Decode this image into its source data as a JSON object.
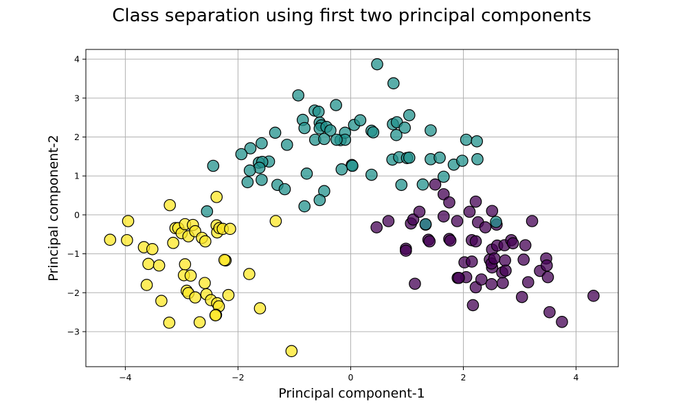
{
  "chart_data": {
    "type": "scatter",
    "title": "Class separation using first two principal components",
    "xlabel": "Principal component-1",
    "ylabel": "Principal component-2",
    "xlim": [
      -4.7,
      4.75
    ],
    "ylim": [
      -3.9,
      4.25
    ],
    "xticks": [
      -4,
      -2,
      0,
      2,
      4
    ],
    "yticks": [
      -3,
      -2,
      -1,
      0,
      1,
      2,
      3,
      4
    ],
    "xtick_labels": [
      "−4",
      "−2",
      "0",
      "2",
      "4"
    ],
    "ytick_labels": [
      "−3",
      "−2",
      "−1",
      "0",
      "1",
      "2",
      "3",
      "4"
    ],
    "grid": true,
    "series": [
      {
        "color": "#440154",
        "points": [
          [
            0.46,
            -0.32
          ],
          [
            0.67,
            -0.16
          ],
          [
            1.07,
            -0.22
          ],
          [
            1.11,
            -0.12
          ],
          [
            1.22,
            0.08
          ],
          [
            1.33,
            -0.25
          ],
          [
            1.5,
            0.78
          ],
          [
            1.65,
            0.53
          ],
          [
            1.75,
            0.32
          ],
          [
            1.65,
            -0.04
          ],
          [
            1.89,
            -0.16
          ],
          [
            1.75,
            -0.62
          ],
          [
            1.77,
            -0.66
          ],
          [
            0.98,
            -0.87
          ],
          [
            0.98,
            -0.92
          ],
          [
            1.38,
            -0.64
          ],
          [
            1.4,
            -0.68
          ],
          [
            1.14,
            -1.77
          ],
          [
            2.02,
            -1.22
          ],
          [
            2.15,
            -1.2
          ],
          [
            2.05,
            -1.6
          ],
          [
            1.9,
            -1.62
          ],
          [
            1.92,
            -1.62
          ],
          [
            2.22,
            -1.86
          ],
          [
            2.32,
            -1.66
          ],
          [
            2.17,
            -2.32
          ],
          [
            2.15,
            -0.65
          ],
          [
            2.22,
            -0.68
          ],
          [
            2.26,
            -0.19
          ],
          [
            2.11,
            0.08
          ],
          [
            2.22,
            0.34
          ],
          [
            2.39,
            -0.32
          ],
          [
            2.51,
            0.1
          ],
          [
            2.59,
            -0.25
          ],
          [
            2.51,
            -0.89
          ],
          [
            2.6,
            -0.79
          ],
          [
            2.47,
            -1.15
          ],
          [
            2.51,
            -1.35
          ],
          [
            2.5,
            -1.25
          ],
          [
            2.55,
            -1.12
          ],
          [
            2.69,
            -1.48
          ],
          [
            2.75,
            -1.43
          ],
          [
            2.74,
            -1.17
          ],
          [
            2.73,
            -0.78
          ],
          [
            2.85,
            -0.65
          ],
          [
            2.88,
            -0.73
          ],
          [
            2.5,
            -1.78
          ],
          [
            2.7,
            -1.75
          ],
          [
            3.07,
            -1.15
          ],
          [
            3.1,
            -0.78
          ],
          [
            3.22,
            -0.16
          ],
          [
            3.04,
            -2.11
          ],
          [
            3.15,
            -1.73
          ],
          [
            3.36,
            -1.44
          ],
          [
            3.47,
            -1.12
          ],
          [
            3.48,
            -1.3
          ],
          [
            3.5,
            -1.6
          ],
          [
            3.53,
            -2.5
          ],
          [
            3.75,
            -2.75
          ],
          [
            4.31,
            -2.08
          ]
        ]
      },
      {
        "color": "#21918c",
        "points": [
          [
            0.47,
            3.87
          ],
          [
            0.76,
            3.38
          ],
          [
            -0.93,
            3.07
          ],
          [
            -0.26,
            2.82
          ],
          [
            -0.64,
            2.68
          ],
          [
            -0.57,
            2.65
          ],
          [
            -0.85,
            2.44
          ],
          [
            -0.55,
            2.37
          ],
          [
            -0.52,
            2.3
          ],
          [
            -0.55,
            2.22
          ],
          [
            -0.43,
            2.26
          ],
          [
            -0.36,
            2.17
          ],
          [
            -0.18,
            1.92
          ],
          [
            -0.1,
            2.11
          ],
          [
            -0.1,
            1.93
          ],
          [
            0.06,
            2.31
          ],
          [
            0.17,
            2.43
          ],
          [
            0.37,
            2.16
          ],
          [
            0.4,
            2.12
          ],
          [
            0.75,
            2.33
          ],
          [
            0.82,
            2.38
          ],
          [
            0.96,
            2.24
          ],
          [
            1.04,
            2.56
          ],
          [
            0.81,
            2.05
          ],
          [
            1.42,
            2.17
          ],
          [
            -0.82,
            2.23
          ],
          [
            -0.63,
            1.93
          ],
          [
            -0.47,
            1.95
          ],
          [
            -1.34,
            2.11
          ],
          [
            -1.58,
            1.84
          ],
          [
            -1.78,
            1.71
          ],
          [
            -1.94,
            1.56
          ],
          [
            -1.13,
            1.8
          ],
          [
            -1.45,
            1.37
          ],
          [
            -1.63,
            1.34
          ],
          [
            -1.57,
            1.36
          ],
          [
            -1.62,
            1.21
          ],
          [
            -1.79,
            1.14
          ],
          [
            -2.44,
            1.26
          ],
          [
            -0.25,
            1.93
          ],
          [
            -0.78,
            1.06
          ],
          [
            0.02,
            1.28
          ],
          [
            0.03,
            1.26
          ],
          [
            -0.16,
            1.17
          ],
          [
            -1.83,
            0.84
          ],
          [
            -1.58,
            0.9
          ],
          [
            -1.3,
            0.77
          ],
          [
            -1.17,
            0.66
          ],
          [
            -0.47,
            0.61
          ],
          [
            -0.55,
            0.38
          ],
          [
            -0.82,
            0.22
          ],
          [
            -2.55,
            0.09
          ],
          [
            0.37,
            1.03
          ],
          [
            0.74,
            1.42
          ],
          [
            0.86,
            1.48
          ],
          [
            1.0,
            1.46
          ],
          [
            1.04,
            1.47
          ],
          [
            1.42,
            1.43
          ],
          [
            1.58,
            1.47
          ],
          [
            1.65,
            0.98
          ],
          [
            1.83,
            1.29
          ],
          [
            1.98,
            1.39
          ],
          [
            2.05,
            1.93
          ],
          [
            2.24,
            1.89
          ],
          [
            2.25,
            1.43
          ],
          [
            1.28,
            0.78
          ],
          [
            0.9,
            0.77
          ],
          [
            1.33,
            -0.24
          ],
          [
            2.58,
            -0.18
          ]
        ]
      },
      {
        "color": "#fde725",
        "points": [
          [
            -3.21,
            0.25
          ],
          [
            -2.38,
            0.46
          ],
          [
            -4.27,
            -0.64
          ],
          [
            -3.95,
            -0.16
          ],
          [
            -3.97,
            -0.65
          ],
          [
            -3.67,
            -0.83
          ],
          [
            -3.52,
            -0.88
          ],
          [
            -3.11,
            -0.34
          ],
          [
            -3.06,
            -0.34
          ],
          [
            -3.0,
            -0.47
          ],
          [
            -2.94,
            -0.24
          ],
          [
            -2.88,
            -0.55
          ],
          [
            -2.8,
            -0.26
          ],
          [
            -2.76,
            -0.42
          ],
          [
            -2.64,
            -0.59
          ],
          [
            -2.58,
            -0.68
          ],
          [
            -2.38,
            -0.27
          ],
          [
            -2.37,
            -0.45
          ],
          [
            -2.33,
            -0.34
          ],
          [
            -2.27,
            -0.36
          ],
          [
            -2.14,
            -0.36
          ],
          [
            -3.15,
            -0.72
          ],
          [
            -3.59,
            -1.26
          ],
          [
            -3.4,
            -1.3
          ],
          [
            -3.62,
            -1.8
          ],
          [
            -2.94,
            -1.27
          ],
          [
            -2.96,
            -1.55
          ],
          [
            -2.84,
            -1.56
          ],
          [
            -2.59,
            -1.75
          ],
          [
            -2.91,
            -1.95
          ],
          [
            -2.88,
            -2.01
          ],
          [
            -2.76,
            -2.12
          ],
          [
            -2.56,
            -2.04
          ],
          [
            -2.48,
            -2.19
          ],
          [
            -2.37,
            -2.27
          ],
          [
            -2.34,
            -2.35
          ],
          [
            -2.39,
            -2.57
          ],
          [
            -2.4,
            -2.58
          ],
          [
            -2.22,
            -1.17
          ],
          [
            -2.24,
            -1.16
          ],
          [
            -2.17,
            -2.06
          ],
          [
            -3.36,
            -2.21
          ],
          [
            -3.22,
            -2.77
          ],
          [
            -2.68,
            -2.76
          ],
          [
            -1.8,
            -1.52
          ],
          [
            -1.61,
            -2.4
          ],
          [
            -1.33,
            -0.16
          ],
          [
            -1.05,
            -3.5
          ]
        ]
      }
    ]
  }
}
